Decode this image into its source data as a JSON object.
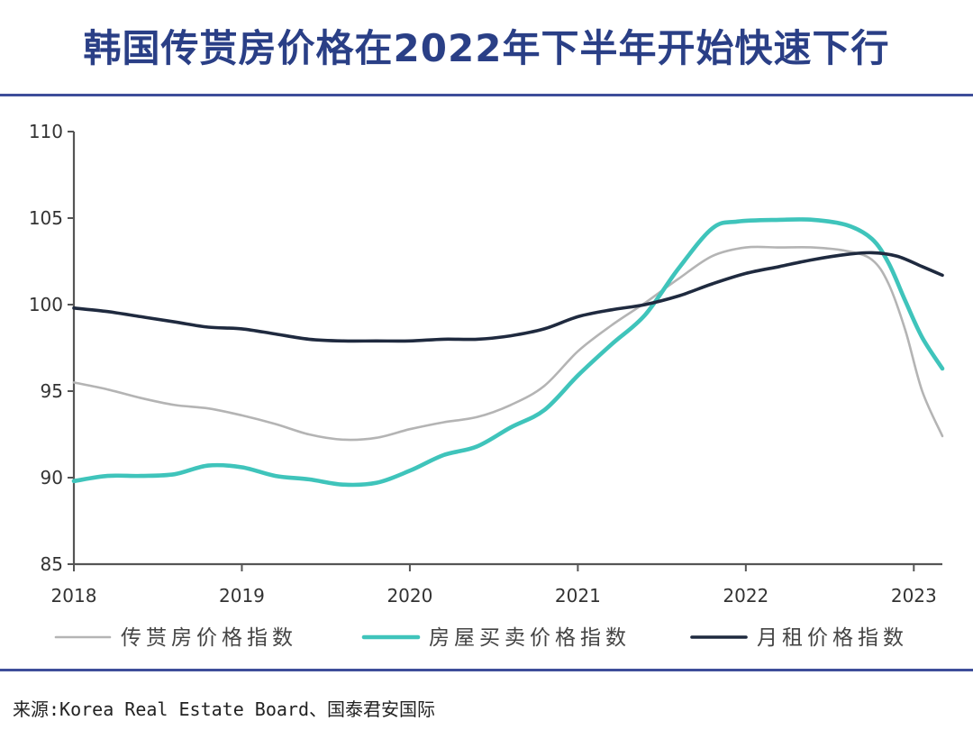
{
  "title": "韩国传贳房价格在2022年下半年开始快速下行",
  "source": "来源:Korea Real Estate Board、国泰君安国际",
  "colors": {
    "title": "#2a3f86",
    "rule": "#3e4e9a",
    "jeonse": "#b4b4b4",
    "sale": "#3fc4bb",
    "rent": "#1f2a3f"
  },
  "chart_data": {
    "type": "line",
    "title": "",
    "xlabel": "",
    "ylabel": "",
    "xlim": [
      2018,
      2023.17
    ],
    "ylim": [
      85,
      110
    ],
    "yticks": [
      85,
      90,
      95,
      100,
      105,
      110
    ],
    "xticks": [
      2018,
      2019,
      2020,
      2021,
      2022,
      2023
    ],
    "grid": false,
    "legend_position": "bottom",
    "series": [
      {
        "name": "传贳房价格指数",
        "color": "#b4b4b4",
        "x": [
          2018,
          2018.2,
          2018.4,
          2018.6,
          2018.8,
          2019,
          2019.2,
          2019.4,
          2019.6,
          2019.8,
          2020,
          2020.2,
          2020.4,
          2020.6,
          2020.8,
          2021,
          2021.2,
          2021.4,
          2021.6,
          2021.8,
          2022,
          2022.2,
          2022.4,
          2022.6,
          2022.75,
          2022.85,
          2022.95,
          2023.05,
          2023.17
        ],
        "y": [
          95.5,
          95.1,
          94.6,
          94.2,
          94.0,
          93.6,
          93.1,
          92.5,
          92.2,
          92.3,
          92.8,
          93.2,
          93.5,
          94.2,
          95.3,
          97.3,
          98.8,
          100.1,
          101.5,
          102.8,
          103.3,
          103.3,
          103.3,
          103.1,
          102.6,
          101.2,
          98.5,
          95.0,
          92.4
        ]
      },
      {
        "name": "房屋买卖价格指数",
        "color": "#3fc4bb",
        "x": [
          2018,
          2018.2,
          2018.4,
          2018.6,
          2018.8,
          2019,
          2019.2,
          2019.4,
          2019.6,
          2019.8,
          2020,
          2020.2,
          2020.4,
          2020.6,
          2020.8,
          2021,
          2021.2,
          2021.4,
          2021.6,
          2021.8,
          2021.95,
          2022.2,
          2022.4,
          2022.6,
          2022.75,
          2022.85,
          2022.95,
          2023.05,
          2023.17
        ],
        "y": [
          89.8,
          90.1,
          90.1,
          90.2,
          90.7,
          90.6,
          90.1,
          89.9,
          89.6,
          89.7,
          90.4,
          91.3,
          91.8,
          92.9,
          93.9,
          95.9,
          97.7,
          99.4,
          102.1,
          104.4,
          104.8,
          104.9,
          104.9,
          104.6,
          103.8,
          102.4,
          100.2,
          98.1,
          96.3
        ]
      },
      {
        "name": "月租价格指数",
        "color": "#1f2a3f",
        "x": [
          2018,
          2018.2,
          2018.4,
          2018.6,
          2018.8,
          2019,
          2019.2,
          2019.4,
          2019.6,
          2019.8,
          2020,
          2020.2,
          2020.4,
          2020.6,
          2020.8,
          2021,
          2021.2,
          2021.4,
          2021.6,
          2021.8,
          2022,
          2022.2,
          2022.4,
          2022.6,
          2022.75,
          2022.9,
          2023.05,
          2023.17
        ],
        "y": [
          99.8,
          99.6,
          99.3,
          99.0,
          98.7,
          98.6,
          98.3,
          98.0,
          97.9,
          97.9,
          97.9,
          98.0,
          98.0,
          98.2,
          98.6,
          99.3,
          99.7,
          100.0,
          100.5,
          101.2,
          101.8,
          102.2,
          102.6,
          102.9,
          103.0,
          102.8,
          102.2,
          101.7
        ]
      }
    ]
  }
}
